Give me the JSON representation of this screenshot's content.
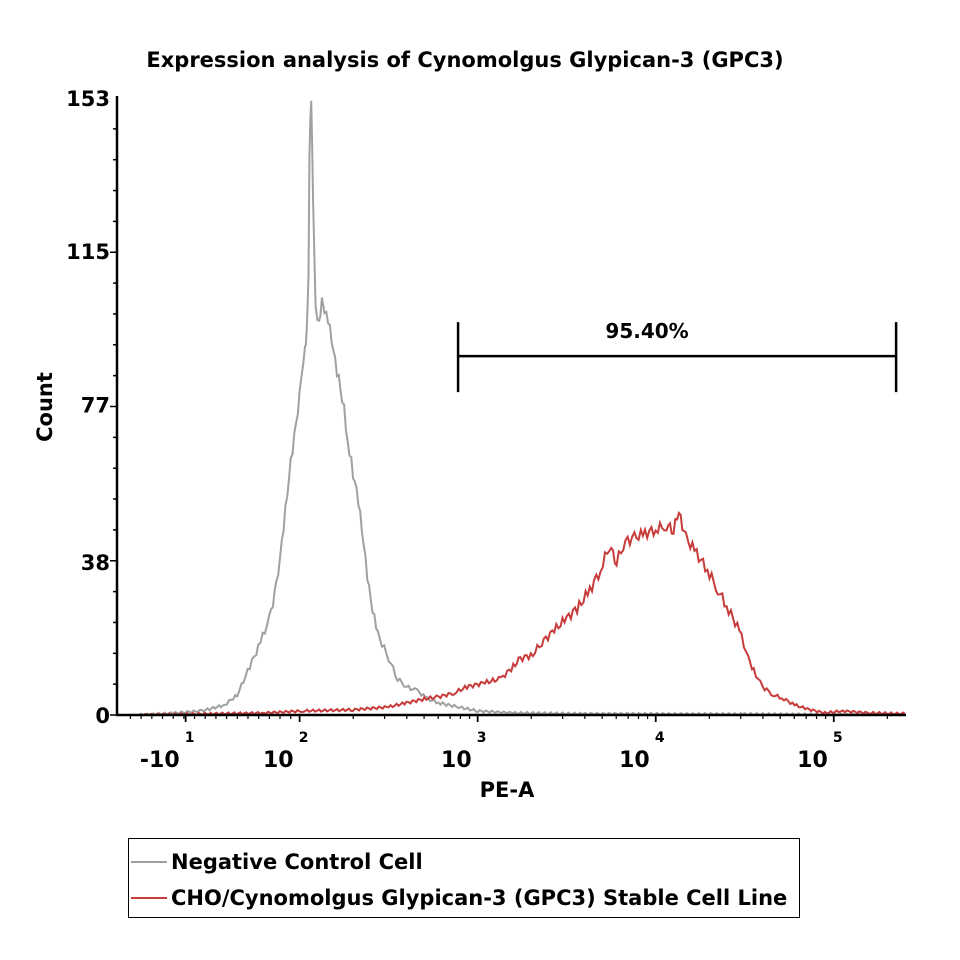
{
  "chart_data": {
    "type": "line",
    "title": "Expression analysis of Cynomolgus Glypican-3 (GPC3)",
    "xlabel": "PE-A",
    "ylabel": "Count",
    "x_scale": "logicle (x values given in decade units, e.g. 3 = 10^3)",
    "xlim": [
      0.98,
      5.4
    ],
    "ylim": [
      0,
      153
    ],
    "yticks": [
      {
        "value": 0,
        "label": "0"
      },
      {
        "value": 38,
        "label": "38"
      },
      {
        "value": 77,
        "label": "77"
      },
      {
        "value": 115,
        "label": "115"
      },
      {
        "value": 153,
        "label": "153"
      }
    ],
    "xticks": [
      {
        "value": 1.36,
        "base": "-10",
        "exp": "1"
      },
      {
        "value": 2,
        "base": "10",
        "exp": "2"
      },
      {
        "value": 3,
        "base": "10",
        "exp": "3"
      },
      {
        "value": 4,
        "base": "10",
        "exp": "4"
      },
      {
        "value": 5,
        "base": "10",
        "exp": "5"
      }
    ],
    "gate": {
      "label": "95.40%",
      "x_start": 2.89,
      "x_end": 5.35,
      "y": 89
    },
    "series": [
      {
        "name": "Negative Control Cell",
        "color": "#a0a0a0",
        "points": [
          [
            1.1,
            0
          ],
          [
            1.3,
            0.5
          ],
          [
            1.45,
            1
          ],
          [
            1.58,
            2.5
          ],
          [
            1.65,
            5
          ],
          [
            1.72,
            12
          ],
          [
            1.78,
            18
          ],
          [
            1.83,
            24
          ],
          [
            1.87,
            32
          ],
          [
            1.9,
            43
          ],
          [
            1.93,
            55
          ],
          [
            1.96,
            66
          ],
          [
            1.99,
            75
          ],
          [
            2.01,
            83
          ],
          [
            2.03,
            90
          ],
          [
            2.04,
            95
          ],
          [
            2.05,
            110
          ],
          [
            2.055,
            140
          ],
          [
            2.065,
            153
          ],
          [
            2.075,
            128
          ],
          [
            2.09,
            100
          ],
          [
            2.11,
            97
          ],
          [
            2.125,
            104
          ],
          [
            2.14,
            101
          ],
          [
            2.16,
            98
          ],
          [
            2.19,
            90
          ],
          [
            2.22,
            83
          ],
          [
            2.25,
            76
          ],
          [
            2.27,
            68
          ],
          [
            2.3,
            60
          ],
          [
            2.33,
            53
          ],
          [
            2.36,
            42
          ],
          [
            2.39,
            31
          ],
          [
            2.42,
            24
          ],
          [
            2.45,
            19
          ],
          [
            2.5,
            14
          ],
          [
            2.55,
            9
          ],
          [
            2.6,
            7
          ],
          [
            2.66,
            6
          ],
          [
            2.72,
            4
          ],
          [
            2.78,
            3
          ],
          [
            2.89,
            2
          ],
          [
            3.0,
            1
          ],
          [
            3.2,
            0.5
          ],
          [
            3.6,
            0.3
          ],
          [
            4.5,
            0.2
          ],
          [
            5.4,
            0
          ]
        ]
      },
      {
        "name": "CHO/Cynomolgus Glypican-3 (GPC3) Stable Cell Line",
        "color": "#c83c3c",
        "points": [
          [
            1.1,
            0
          ],
          [
            1.5,
            0.3
          ],
          [
            1.8,
            0.5
          ],
          [
            2.02,
            1
          ],
          [
            2.3,
            1.3
          ],
          [
            2.5,
            2
          ],
          [
            2.6,
            3
          ],
          [
            2.7,
            4
          ],
          [
            2.78,
            4.5
          ],
          [
            2.87,
            5.5
          ],
          [
            2.94,
            7
          ],
          [
            3.04,
            8
          ],
          [
            3.13,
            9
          ],
          [
            3.2,
            12
          ],
          [
            3.24,
            14
          ],
          [
            3.31,
            15
          ],
          [
            3.36,
            18
          ],
          [
            3.43,
            21
          ],
          [
            3.5,
            24
          ],
          [
            3.57,
            27
          ],
          [
            3.63,
            31
          ],
          [
            3.69,
            36
          ],
          [
            3.74,
            42
          ],
          [
            3.78,
            38
          ],
          [
            3.83,
            43
          ],
          [
            3.88,
            44
          ],
          [
            3.94,
            45
          ],
          [
            4.0,
            46
          ],
          [
            4.06,
            47
          ],
          [
            4.1,
            46
          ],
          [
            4.13,
            50
          ],
          [
            4.17,
            44
          ],
          [
            4.23,
            40
          ],
          [
            4.29,
            36
          ],
          [
            4.35,
            31
          ],
          [
            4.41,
            26
          ],
          [
            4.47,
            21
          ],
          [
            4.52,
            14
          ],
          [
            4.55,
            11
          ],
          [
            4.6,
            7
          ],
          [
            4.66,
            5
          ],
          [
            4.72,
            4
          ],
          [
            4.78,
            2.5
          ],
          [
            4.85,
            1.5
          ],
          [
            4.95,
            0.5
          ],
          [
            5.05,
            1
          ],
          [
            5.2,
            0.5
          ],
          [
            5.4,
            0.3
          ]
        ]
      }
    ],
    "legend": {
      "placement": "bottom"
    }
  }
}
